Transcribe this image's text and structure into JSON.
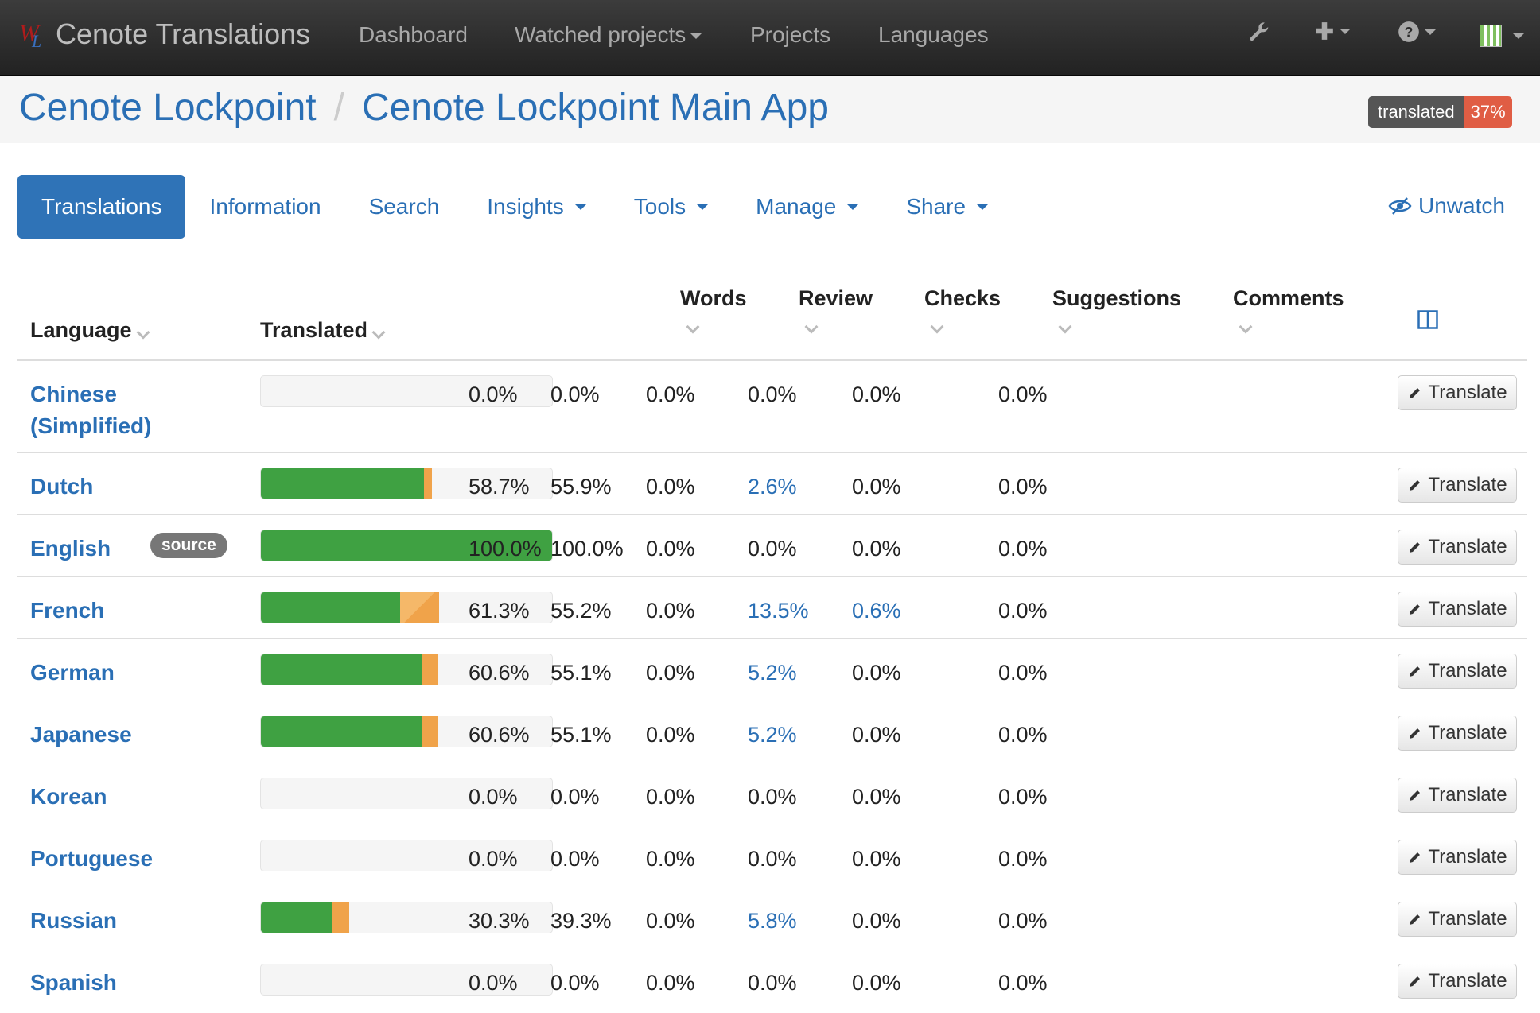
{
  "navbar": {
    "brand": "Cenote Translations",
    "logo_w": "W",
    "logo_l": "L",
    "items": [
      "Dashboard",
      "Watched projects",
      "Projects",
      "Languages"
    ]
  },
  "breadcrumb": {
    "project": "Cenote Lockpoint",
    "separator": "/",
    "component": "Cenote Lockpoint Main App"
  },
  "status_badge": {
    "label": "translated",
    "value": "37%"
  },
  "tabs": [
    {
      "label": "Translations"
    },
    {
      "label": "Information"
    },
    {
      "label": "Search"
    },
    {
      "label": "Insights"
    },
    {
      "label": "Tools"
    },
    {
      "label": "Manage"
    },
    {
      "label": "Share"
    }
  ],
  "unwatch_label": "Unwatch",
  "table": {
    "headers": {
      "language": "Language",
      "translated": "Translated",
      "words": "Words",
      "review": "Review",
      "checks": "Checks",
      "suggestions": "Suggestions",
      "comments": "Comments"
    },
    "translate_label": "Translate",
    "source_label": "source",
    "rows": [
      {
        "lang": "Chinese (Simplified)",
        "translated": "0.0%",
        "words": "0.0%",
        "review": "0.0%",
        "checks": "0.0%",
        "suggestions": "0.0%",
        "comments": "0.0%",
        "green": 0,
        "orange": 0
      },
      {
        "lang": "Dutch",
        "translated": "58.7%",
        "words": "55.9%",
        "review": "0.0%",
        "checks": "2.6%",
        "suggestions": "0.0%",
        "comments": "0.0%",
        "green": 56.1,
        "orange": 2.6
      },
      {
        "lang": "English",
        "translated": "100.0%",
        "words": "100.0%",
        "review": "0.0%",
        "checks": "0.0%",
        "suggestions": "0.0%",
        "comments": "0.0%",
        "green": 100,
        "orange": 0
      },
      {
        "lang": "French",
        "translated": "61.3%",
        "words": "55.2%",
        "review": "0.0%",
        "checks": "13.5%",
        "suggestions": "0.6%",
        "comments": "0.0%",
        "green": 47.8,
        "orange": 13.5
      },
      {
        "lang": "German",
        "translated": "60.6%",
        "words": "55.1%",
        "review": "0.0%",
        "checks": "5.2%",
        "suggestions": "0.0%",
        "comments": "0.0%",
        "green": 55.4,
        "orange": 5.2
      },
      {
        "lang": "Japanese",
        "translated": "60.6%",
        "words": "55.1%",
        "review": "0.0%",
        "checks": "5.2%",
        "suggestions": "0.0%",
        "comments": "0.0%",
        "green": 55.4,
        "orange": 5.2
      },
      {
        "lang": "Korean",
        "translated": "0.0%",
        "words": "0.0%",
        "review": "0.0%",
        "checks": "0.0%",
        "suggestions": "0.0%",
        "comments": "0.0%",
        "green": 0,
        "orange": 0
      },
      {
        "lang": "Portuguese",
        "translated": "0.0%",
        "words": "0.0%",
        "review": "0.0%",
        "checks": "0.0%",
        "suggestions": "0.0%",
        "comments": "0.0%",
        "green": 0,
        "orange": 0
      },
      {
        "lang": "Russian",
        "translated": "30.3%",
        "words": "39.3%",
        "review": "0.0%",
        "checks": "5.8%",
        "suggestions": "0.0%",
        "comments": "0.0%",
        "green": 24.5,
        "orange": 5.8
      },
      {
        "lang": "Spanish",
        "translated": "0.0%",
        "words": "0.0%",
        "review": "0.0%",
        "checks": "0.0%",
        "suggestions": "0.0%",
        "comments": "0.0%",
        "green": 0,
        "orange": 0
      }
    ]
  }
}
